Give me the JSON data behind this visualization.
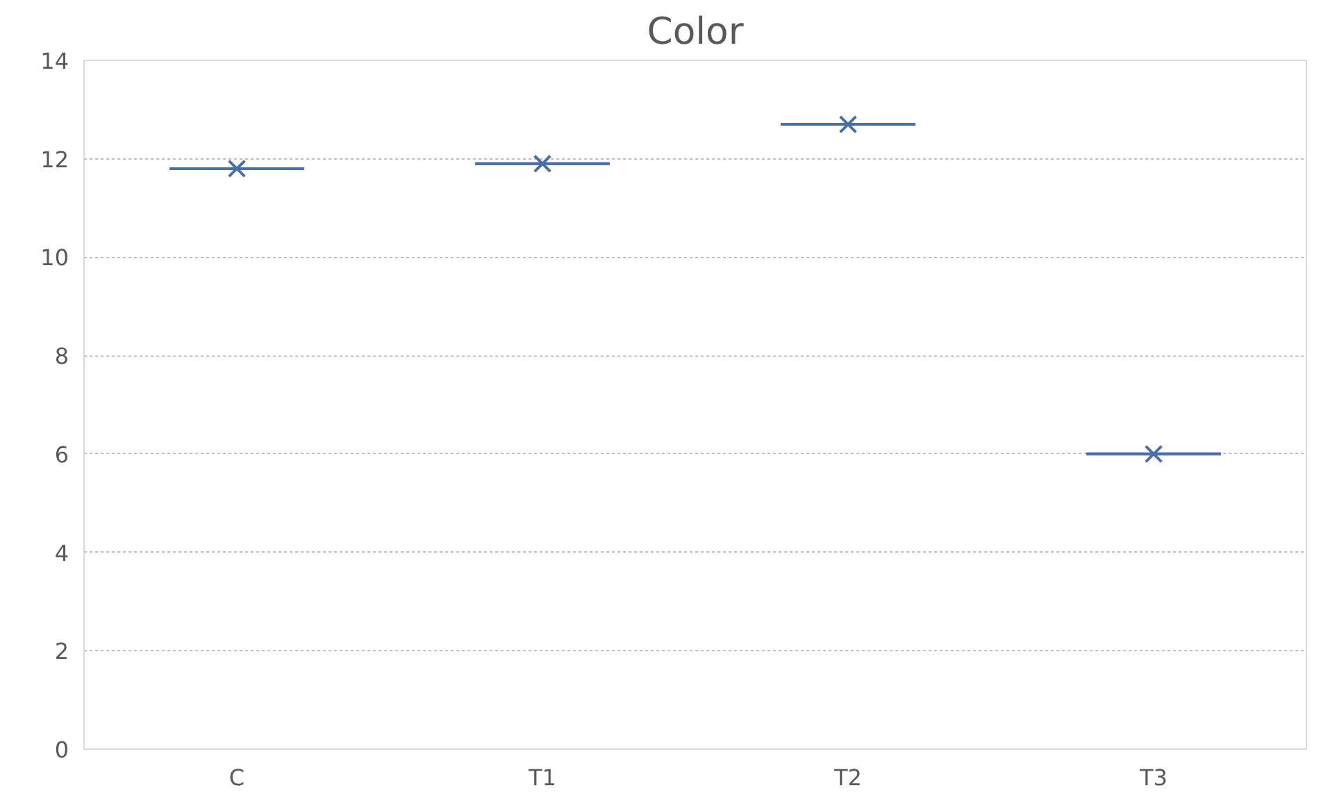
{
  "chart_data": {
    "type": "box",
    "title": "Color",
    "categories": [
      "C",
      "T1",
      "T2",
      "T3"
    ],
    "color": "#4a6fa5",
    "marker": "cross",
    "boxes": [
      {
        "low": 11.8,
        "q1": 11.8,
        "median": 11.8,
        "q3": 11.8,
        "high": 11.8,
        "mean": 11.8
      },
      {
        "low": 11.9,
        "q1": 11.9,
        "median": 11.9,
        "q3": 11.9,
        "high": 11.9,
        "mean": 11.9
      },
      {
        "low": 12.7,
        "q1": 12.7,
        "median": 12.7,
        "q3": 12.7,
        "high": 12.7,
        "mean": 12.7
      },
      {
        "low": 6.0,
        "q1": 6.0,
        "median": 6.0,
        "q3": 6.0,
        "high": 6.0,
        "mean": 6.0
      }
    ],
    "ylim": [
      0,
      14
    ],
    "yticks": [
      0,
      2,
      4,
      6,
      8,
      10,
      12,
      14
    ],
    "grid": "y"
  }
}
